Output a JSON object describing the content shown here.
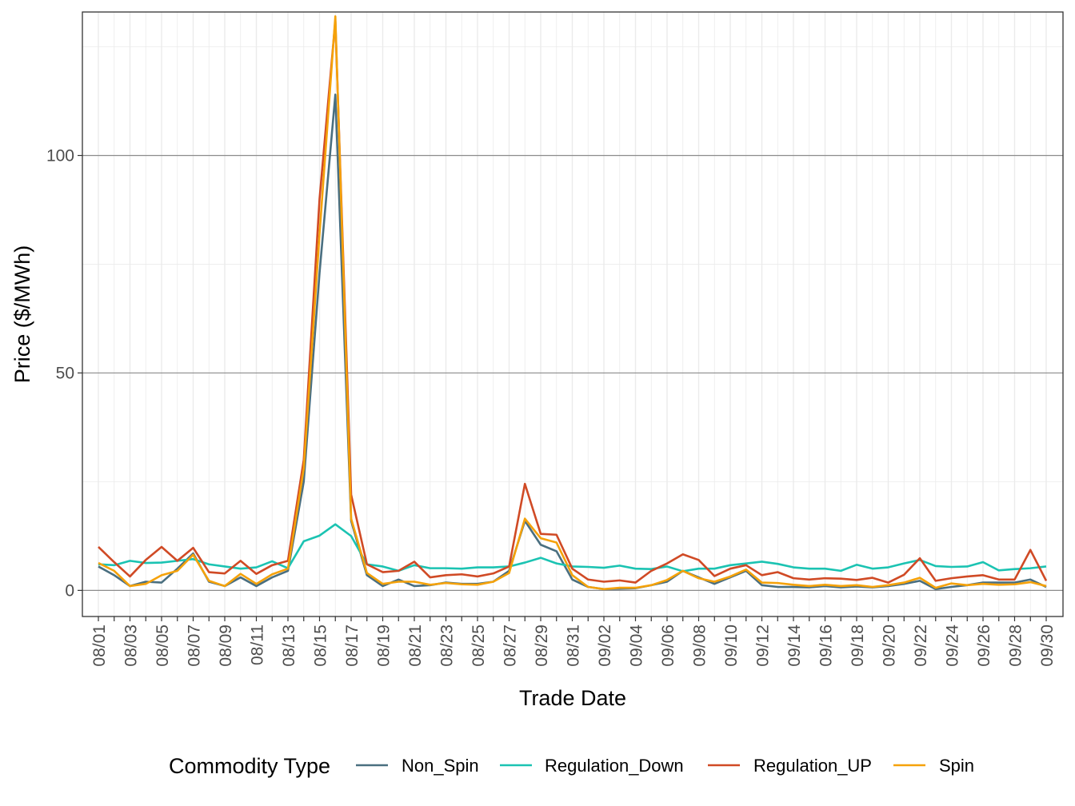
{
  "chart_data": {
    "type": "line",
    "title": "",
    "xlabel": "Trade Date",
    "ylabel": "Price ($/MWh)",
    "ylim": [
      -6,
      133
    ],
    "y_ticks": [
      0,
      50,
      100
    ],
    "y_minor_ticks": [
      25,
      75,
      125
    ],
    "x_tick_labels": [
      "08/01",
      "08/03",
      "08/05",
      "08/07",
      "08/09",
      "08/11",
      "08/13",
      "08/15",
      "08/17",
      "08/19",
      "08/21",
      "08/23",
      "08/25",
      "08/27",
      "08/29",
      "08/31",
      "09/02",
      "09/04",
      "09/06",
      "09/08",
      "09/10",
      "09/12",
      "09/14",
      "09/16",
      "09/18",
      "09/20",
      "09/22",
      "09/24",
      "09/26",
      "09/28",
      "09/30"
    ],
    "x": [
      "08/01",
      "08/02",
      "08/03",
      "08/04",
      "08/05",
      "08/06",
      "08/07",
      "08/08",
      "08/09",
      "08/10",
      "08/11",
      "08/12",
      "08/13",
      "08/14",
      "08/15",
      "08/16",
      "08/17",
      "08/18",
      "08/19",
      "08/20",
      "08/21",
      "08/22",
      "08/23",
      "08/24",
      "08/25",
      "08/26",
      "08/27",
      "08/28",
      "08/29",
      "08/30",
      "08/31",
      "09/01",
      "09/02",
      "09/03",
      "09/04",
      "09/05",
      "09/06",
      "09/07",
      "09/08",
      "09/09",
      "09/10",
      "09/11",
      "09/12",
      "09/13",
      "09/14",
      "09/15",
      "09/16",
      "09/17",
      "09/18",
      "09/19",
      "09/20",
      "09/21",
      "09/22",
      "09/23",
      "09/24",
      "09/25",
      "09/26",
      "09/27",
      "09/28",
      "09/29",
      "09/30"
    ],
    "grid": true,
    "legend": {
      "title": "Commodity Type",
      "position": "bottom"
    },
    "series": [
      {
        "name": "Non_Spin",
        "color": "#4a6f80",
        "values": [
          5.5,
          3.5,
          1.0,
          2.0,
          1.8,
          5.0,
          8.5,
          2.0,
          1.0,
          3.0,
          1.0,
          3.0,
          4.5,
          25.0,
          73.0,
          114.0,
          16.0,
          3.5,
          1.0,
          2.5,
          1.0,
          1.2,
          1.8,
          1.5,
          1.5,
          2.0,
          4.5,
          16.0,
          10.5,
          9.0,
          2.5,
          0.8,
          0.3,
          0.4,
          0.5,
          1.2,
          2.0,
          4.5,
          3.0,
          1.5,
          3.0,
          4.5,
          1.2,
          0.8,
          0.8,
          0.7,
          1.0,
          0.7,
          0.9,
          0.7,
          1.0,
          1.5,
          2.2,
          0.3,
          0.8,
          1.2,
          1.8,
          1.8,
          1.8,
          2.5,
          0.8
        ]
      },
      {
        "name": "Regulation_Down",
        "color": "#1bc3b2",
        "values": [
          6.0,
          5.8,
          6.8,
          6.3,
          6.4,
          6.8,
          7.2,
          6.0,
          5.5,
          5.0,
          5.3,
          6.7,
          5.1,
          11.3,
          12.6,
          15.2,
          12.5,
          6.0,
          5.5,
          4.5,
          5.8,
          5.1,
          5.1,
          5.0,
          5.3,
          5.3,
          5.5,
          6.4,
          7.5,
          6.2,
          5.5,
          5.4,
          5.2,
          5.7,
          5.0,
          4.9,
          5.5,
          4.4,
          5.0,
          5.0,
          5.8,
          6.2,
          6.6,
          6.1,
          5.3,
          5.0,
          5.0,
          4.5,
          5.9,
          5.0,
          5.3,
          6.2,
          7.0,
          5.6,
          5.4,
          5.5,
          6.5,
          4.6,
          4.9,
          5.1,
          5.5
        ]
      },
      {
        "name": "Regulation_UP",
        "color": "#d04a25",
        "values": [
          10.0,
          6.5,
          3.2,
          7.0,
          10.0,
          6.8,
          9.8,
          4.2,
          3.9,
          6.8,
          3.8,
          5.8,
          6.8,
          30.0,
          90.0,
          131.0,
          22.0,
          6.0,
          4.2,
          4.5,
          6.6,
          3.0,
          3.5,
          3.7,
          3.2,
          3.9,
          5.5,
          24.5,
          13.0,
          12.8,
          5.0,
          2.5,
          2.0,
          2.3,
          1.8,
          4.5,
          6.2,
          8.3,
          7.0,
          3.3,
          5.0,
          5.8,
          3.5,
          4.2,
          2.8,
          2.5,
          2.8,
          2.7,
          2.4,
          2.9,
          1.8,
          3.6,
          7.4,
          2.2,
          2.8,
          3.2,
          3.5,
          2.5,
          2.5,
          9.3,
          2.2
        ]
      },
      {
        "name": "Spin",
        "color": "#f5a20a",
        "values": [
          6.3,
          4.5,
          1.0,
          1.5,
          3.5,
          4.5,
          8.2,
          2.2,
          1.0,
          3.8,
          1.5,
          3.7,
          5.0,
          28.0,
          82.0,
          132.0,
          16.5,
          4.0,
          1.5,
          2.0,
          2.0,
          1.3,
          1.7,
          1.4,
          1.3,
          2.0,
          4.0,
          16.5,
          12.0,
          11.0,
          3.5,
          0.8,
          0.3,
          0.6,
          0.6,
          1.2,
          2.4,
          4.5,
          2.8,
          2.0,
          3.2,
          4.8,
          1.8,
          1.7,
          1.3,
          1.0,
          1.3,
          1.0,
          1.2,
          0.8,
          1.2,
          1.8,
          2.9,
          0.6,
          1.6,
          1.2,
          1.5,
          1.3,
          1.4,
          1.9,
          1.0
        ]
      }
    ]
  }
}
